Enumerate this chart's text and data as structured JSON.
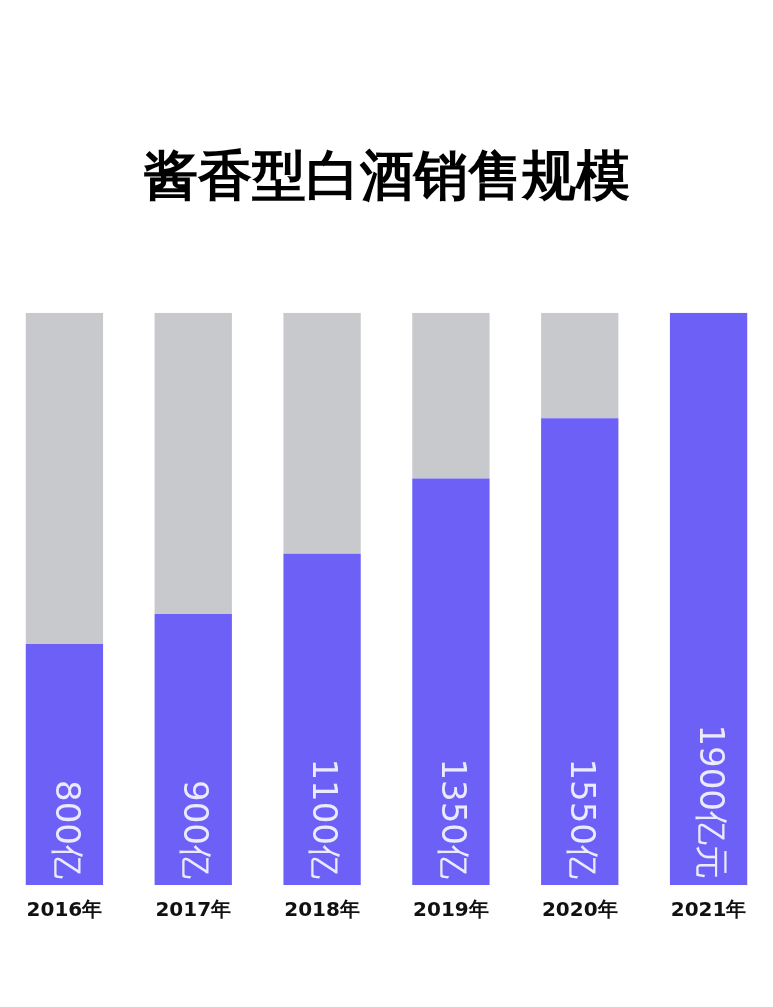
{
  "chart_data": {
    "type": "bar",
    "title": "酱香型白酒销售规模",
    "categories": [
      "2016年",
      "2017年",
      "2018年",
      "2019年",
      "2020年",
      "2021年"
    ],
    "stacked": true,
    "ylim": [
      0,
      1900
    ],
    "tick_labels": "x",
    "legend": false,
    "series": [
      {
        "color": "#6c60f7",
        "values": [
          800,
          900,
          1100,
          1350,
          1550,
          1900
        ],
        "value_labels": [
          "800亿",
          "900亿",
          "1100亿",
          "1350亿",
          "1550亿",
          "1900亿元"
        ]
      },
      {
        "color": "#c8c9cc",
        "values": [
          1100,
          1000,
          800,
          550,
          350,
          0
        ]
      }
    ]
  }
}
